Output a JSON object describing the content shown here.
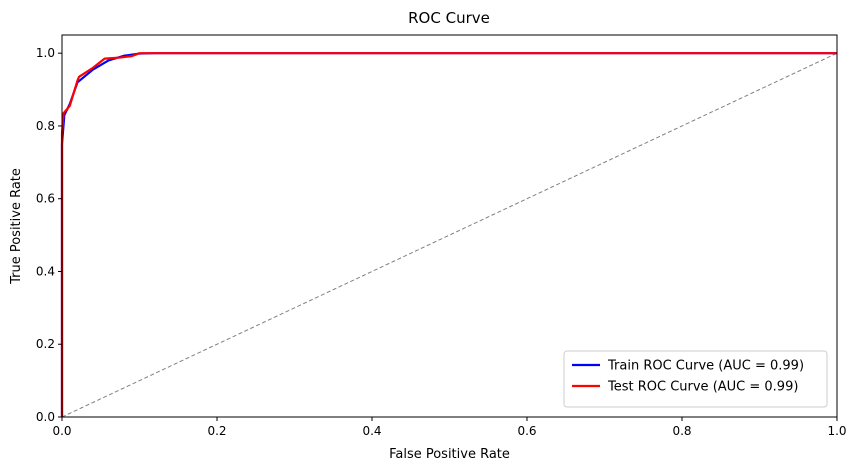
{
  "chart_data": {
    "type": "line",
    "title": "ROC Curve",
    "xlabel": "False Positive Rate",
    "ylabel": "True Positive Rate",
    "xlim": [
      0.0,
      1.0
    ],
    "ylim": [
      0.0,
      1.05
    ],
    "x_ticks": [
      "0.0",
      "0.2",
      "0.4",
      "0.6",
      "0.8",
      "1.0"
    ],
    "y_ticks": [
      "0.0",
      "0.2",
      "0.4",
      "0.6",
      "0.8",
      "1.0"
    ],
    "grid": false,
    "legend_position": "lower-right",
    "series": [
      {
        "name": "Train ROC Curve (AUC = 0.99)",
        "color": "#0000ff",
        "x": [
          0.0,
          0.0,
          0.003,
          0.01,
          0.02,
          0.04,
          0.06,
          0.08,
          0.1,
          0.12,
          0.2,
          0.5,
          0.8,
          1.0
        ],
        "y": [
          0.0,
          0.75,
          0.83,
          0.86,
          0.92,
          0.955,
          0.98,
          0.993,
          0.999,
          1.0,
          1.0,
          1.0,
          1.0,
          1.0
        ]
      },
      {
        "name": "Test ROC Curve (AUC = 0.99)",
        "color": "#ff0000",
        "x": [
          0.0,
          0.0,
          0.002,
          0.01,
          0.02,
          0.022,
          0.04,
          0.055,
          0.075,
          0.09,
          0.1,
          0.2,
          0.5,
          0.8,
          1.0
        ],
        "y": [
          0.0,
          0.78,
          0.835,
          0.855,
          0.925,
          0.935,
          0.96,
          0.985,
          0.988,
          0.992,
          1.0,
          1.0,
          1.0,
          1.0,
          1.0
        ]
      },
      {
        "name": "",
        "color": "#808080",
        "style": "dashed",
        "x": [
          0.0,
          1.0
        ],
        "y": [
          0.0,
          1.0
        ]
      }
    ]
  }
}
